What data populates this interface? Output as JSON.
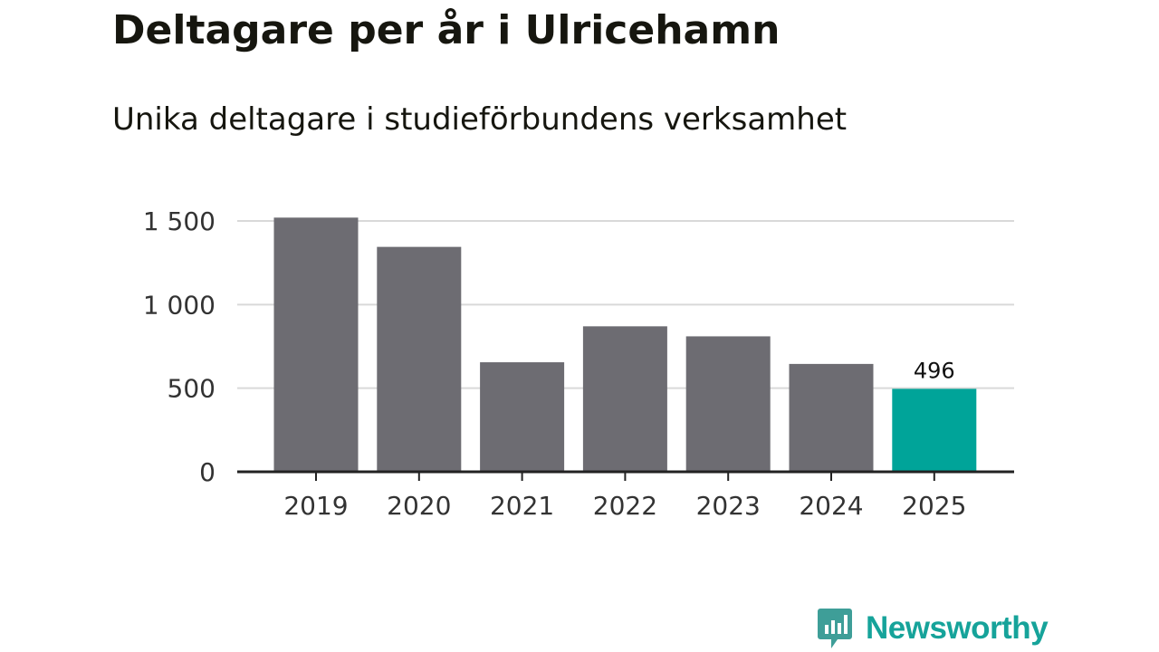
{
  "title": "Deltagare per år i Ulricehamn",
  "subtitle": "Unika deltagare i studieförbundens verksamhet",
  "chart_data": {
    "type": "bar",
    "categories": [
      "2019",
      "2020",
      "2021",
      "2022",
      "2023",
      "2024",
      "2025"
    ],
    "values": [
      1520,
      1345,
      655,
      870,
      810,
      645,
      496
    ],
    "labeled_values": [
      "",
      "",
      "",
      "",
      "",
      "",
      "496"
    ],
    "highlight_index": 6,
    "ylim": [
      0,
      1500
    ],
    "yticks": [
      0,
      500,
      1000,
      1500
    ],
    "ytick_labels": [
      "0",
      "500",
      "1 000",
      "1 500"
    ],
    "xlabel": "",
    "ylabel": "",
    "grid": true,
    "bar_color": "#6d6c72",
    "highlight_color": "#00a499",
    "grid_color": "#d9d9d9",
    "axis_color": "#222222"
  },
  "brand": {
    "name": "Newsworthy",
    "icon": "newsworthy-logo-icon",
    "color": "#16a39a"
  }
}
